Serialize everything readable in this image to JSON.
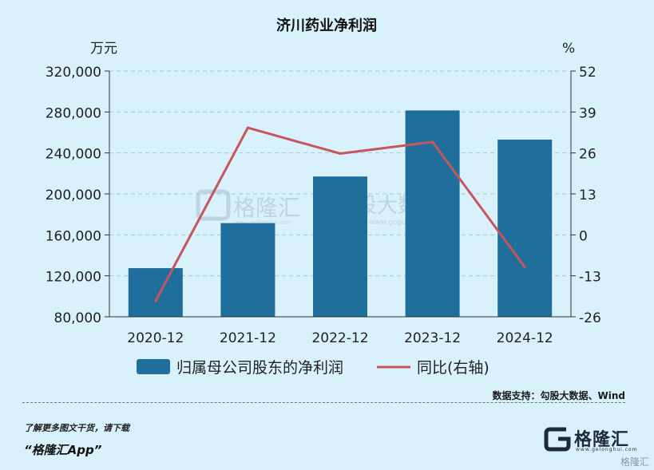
{
  "chart_data": {
    "type": "bar+line",
    "title": "济川药业净利润",
    "left_unit": "万元",
    "right_unit": "%",
    "categories": [
      "2020-12",
      "2021-12",
      "2022-12",
      "2023-12",
      "2024-12"
    ],
    "series": [
      {
        "name": "归属母公司股东的净利润",
        "kind": "bar",
        "axis": "left",
        "values": [
          127500,
          171500,
          217000,
          281500,
          253000
        ]
      },
      {
        "name": "同比(右轴)",
        "kind": "line",
        "axis": "right",
        "values": [
          -21,
          34,
          25.8,
          29.5,
          -10.2
        ]
      }
    ],
    "left_axis": {
      "ylim": [
        80000,
        320000
      ],
      "ticks": [
        "80,000",
        "120,000",
        "160,000",
        "200,000",
        "240,000",
        "280,000",
        "320,000"
      ]
    },
    "right_axis": {
      "ylim": [
        -26,
        52
      ],
      "ticks": [
        "-26",
        "-13",
        "0",
        "13",
        "26",
        "39",
        "52"
      ]
    },
    "grid": true,
    "legend_position": "bottom",
    "colors": {
      "bar": "#1f6e9c",
      "line": "#c5565c",
      "background": "#d9f1fb"
    }
  },
  "footer": {
    "source": "数据支持：勾股大数据、Wind",
    "promo": "了解更多图文干货，请下载",
    "app": "“格隆汇App”"
  },
  "logo": {
    "name": "格隆汇",
    "url": "www.gelonghui.com"
  },
  "watermarks": {
    "center_left": "格隆汇",
    "center_left_url": "www.gelonghui.com",
    "center_right": "勾股大数据",
    "center_right_url": "www.gogudata.com",
    "corner": "格隆汇"
  }
}
